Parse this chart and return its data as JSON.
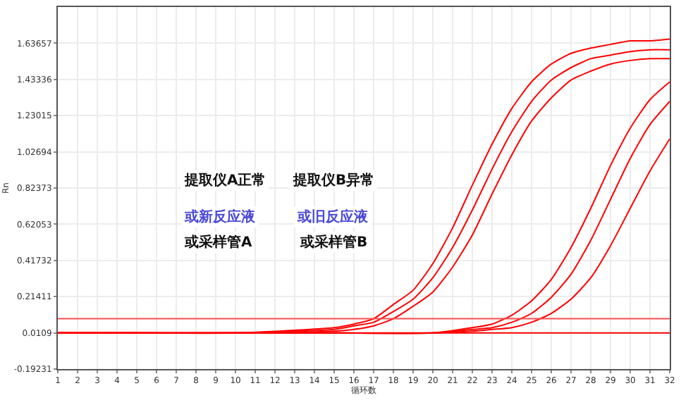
{
  "chart_data": {
    "type": "line",
    "xlabel": "循环数",
    "ylabel": "Rn",
    "xlim": [
      1,
      32
    ],
    "xticks": [
      1,
      2,
      3,
      4,
      5,
      6,
      7,
      8,
      9,
      10,
      11,
      12,
      13,
      14,
      15,
      16,
      17,
      18,
      19,
      20,
      21,
      22,
      23,
      24,
      25,
      26,
      27,
      28,
      29,
      30,
      31,
      32
    ],
    "ylim": [
      -0.19231,
      1.84
    ],
    "yticks": [
      -0.19231,
      0.0109,
      0.21411,
      0.41732,
      0.62053,
      0.82373,
      1.02694,
      1.23015,
      1.43336,
      1.63657
    ],
    "grid": true,
    "marker": "none",
    "line_style": "solid",
    "series": [
      {
        "color": "#ff0000",
        "x": [
          1,
          5,
          10,
          15,
          16,
          17,
          18,
          19,
          20,
          21,
          22,
          23,
          24,
          25,
          26,
          27,
          28,
          29,
          30,
          31,
          32
        ],
        "values": [
          0.01,
          0.01,
          0.01,
          0.04,
          0.06,
          0.09,
          0.17,
          0.25,
          0.4,
          0.6,
          0.84,
          1.07,
          1.27,
          1.42,
          1.52,
          1.58,
          1.61,
          1.63,
          1.65,
          1.65,
          1.66
        ]
      },
      {
        "color": "#ff0000",
        "x": [
          1,
          5,
          10,
          15,
          16,
          17,
          18,
          19,
          20,
          21,
          22,
          23,
          24,
          25,
          26,
          27,
          28,
          29,
          30,
          31,
          32
        ],
        "values": [
          0.01,
          0.01,
          0.01,
          0.03,
          0.05,
          0.07,
          0.13,
          0.2,
          0.32,
          0.49,
          0.7,
          0.93,
          1.14,
          1.31,
          1.43,
          1.5,
          1.55,
          1.57,
          1.59,
          1.6,
          1.6
        ]
      },
      {
        "color": "#ff0000",
        "x": [
          1,
          5,
          10,
          15,
          16,
          17,
          18,
          19,
          20,
          21,
          22,
          23,
          24,
          25,
          26,
          27,
          28,
          29,
          30,
          31,
          32
        ],
        "values": [
          0.01,
          0.01,
          0.01,
          0.02,
          0.03,
          0.05,
          0.09,
          0.16,
          0.24,
          0.38,
          0.56,
          0.79,
          1.01,
          1.2,
          1.33,
          1.43,
          1.48,
          1.52,
          1.54,
          1.55,
          1.55
        ]
      },
      {
        "color": "#ff0000",
        "x": [
          1,
          5,
          10,
          15,
          20,
          22,
          23,
          24,
          25,
          26,
          27,
          28,
          29,
          30,
          31,
          32
        ],
        "values": [
          0.01,
          0.01,
          0.01,
          0.01,
          0.01,
          0.04,
          0.06,
          0.11,
          0.19,
          0.31,
          0.49,
          0.71,
          0.95,
          1.16,
          1.32,
          1.42
        ]
      },
      {
        "color": "#ff0000",
        "x": [
          1,
          5,
          10,
          15,
          20,
          22,
          23,
          24,
          25,
          26,
          27,
          28,
          29,
          30,
          31,
          32
        ],
        "values": [
          0.01,
          0.01,
          0.01,
          0.01,
          0.01,
          0.03,
          0.04,
          0.07,
          0.12,
          0.21,
          0.34,
          0.53,
          0.76,
          0.99,
          1.18,
          1.31
        ]
      },
      {
        "color": "#ff0000",
        "x": [
          1,
          5,
          10,
          15,
          20,
          22,
          23,
          24,
          25,
          26,
          27,
          28,
          29,
          30,
          31,
          32
        ],
        "values": [
          0.01,
          0.01,
          0.01,
          0.01,
          0.01,
          0.02,
          0.03,
          0.04,
          0.07,
          0.12,
          0.2,
          0.32,
          0.5,
          0.71,
          0.92,
          1.1
        ]
      },
      {
        "color": "#ff0000",
        "x": [
          1,
          32
        ],
        "values": [
          0.01,
          0.01
        ]
      }
    ],
    "ref_lines": [
      {
        "axis": "y",
        "value": 0.09,
        "color": "#ff4c4c"
      }
    ],
    "annotations": [
      "提取仪A正常",
      "或新反应液",
      "或采样管A",
      "提取仪B异常",
      "或旧反应液",
      "或采样管B"
    ]
  }
}
